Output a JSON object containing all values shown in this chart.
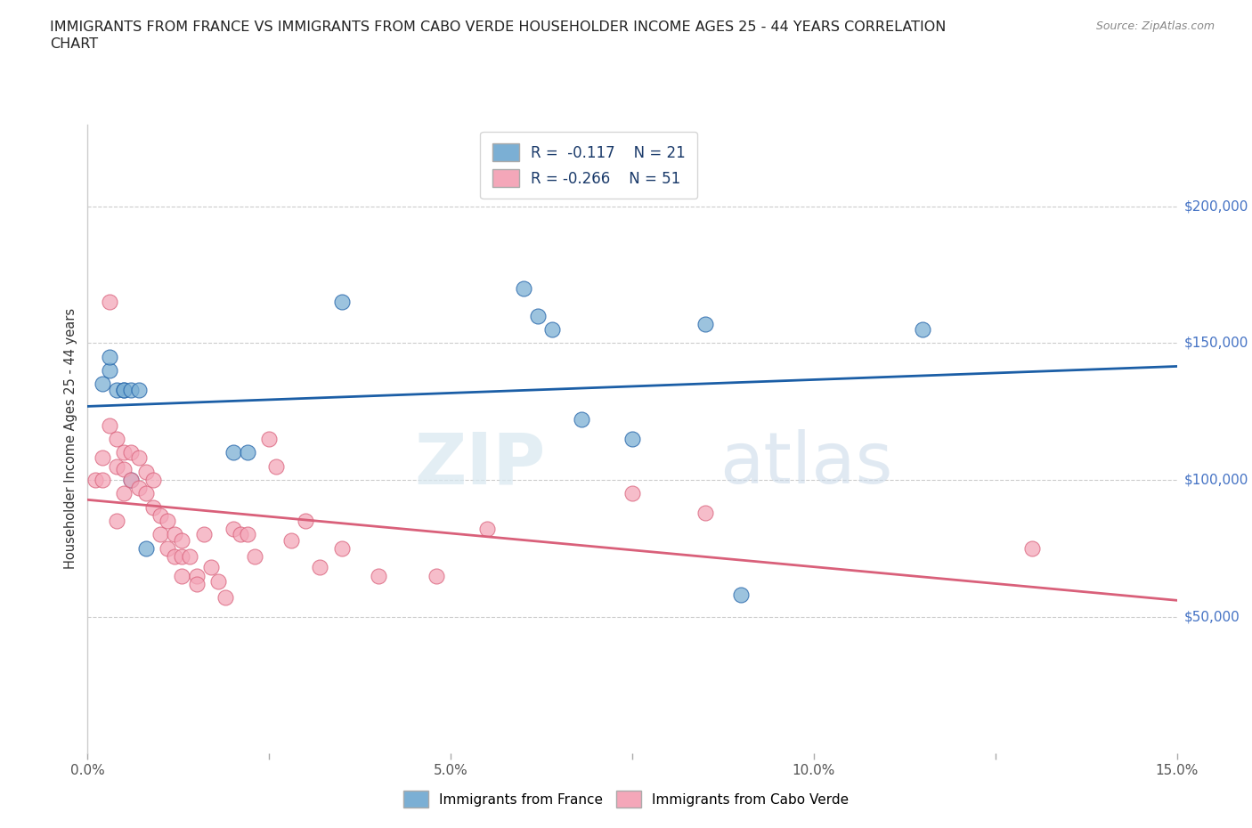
{
  "title_line1": "IMMIGRANTS FROM FRANCE VS IMMIGRANTS FROM CABO VERDE HOUSEHOLDER INCOME AGES 25 - 44 YEARS CORRELATION",
  "title_line2": "CHART",
  "source": "Source: ZipAtlas.com",
  "ylabel": "Householder Income Ages 25 - 44 years",
  "xlim": [
    0.0,
    0.15
  ],
  "ylim": [
    0,
    230000
  ],
  "xticks": [
    0.0,
    0.025,
    0.05,
    0.075,
    0.1,
    0.125,
    0.15
  ],
  "xticklabels": [
    "0.0%",
    "",
    "5.0%",
    "",
    "10.0%",
    "",
    "15.0%"
  ],
  "ytick_right_labels": [
    "$50,000",
    "$100,000",
    "$150,000",
    "$200,000"
  ],
  "ytick_right_values": [
    50000,
    100000,
    150000,
    200000
  ],
  "france_color": "#7BAFD4",
  "cabo_verde_color": "#F4A7B9",
  "france_line_color": "#1B5EA6",
  "cabo_verde_line_color": "#D9607A",
  "legend_france_r": "-0.117",
  "legend_france_n": "21",
  "legend_cabo_r": "-0.266",
  "legend_cabo_n": "51",
  "watermark_zip": "ZIP",
  "watermark_atlas": "atlas",
  "france_x": [
    0.002,
    0.003,
    0.003,
    0.004,
    0.005,
    0.005,
    0.006,
    0.006,
    0.007,
    0.008,
    0.02,
    0.022,
    0.035,
    0.06,
    0.062,
    0.064,
    0.068,
    0.075,
    0.085,
    0.09,
    0.115
  ],
  "france_y": [
    135000,
    140000,
    145000,
    133000,
    133000,
    133000,
    133000,
    100000,
    133000,
    75000,
    110000,
    110000,
    165000,
    170000,
    160000,
    155000,
    122000,
    115000,
    157000,
    58000,
    155000
  ],
  "cabo_verde_x": [
    0.001,
    0.002,
    0.002,
    0.003,
    0.003,
    0.004,
    0.004,
    0.004,
    0.005,
    0.005,
    0.005,
    0.006,
    0.006,
    0.007,
    0.007,
    0.008,
    0.008,
    0.009,
    0.009,
    0.01,
    0.01,
    0.011,
    0.011,
    0.012,
    0.012,
    0.013,
    0.013,
    0.013,
    0.014,
    0.015,
    0.015,
    0.016,
    0.017,
    0.018,
    0.019,
    0.02,
    0.021,
    0.022,
    0.023,
    0.025,
    0.026,
    0.028,
    0.03,
    0.032,
    0.035,
    0.04,
    0.048,
    0.055,
    0.075,
    0.085,
    0.13
  ],
  "cabo_verde_y": [
    100000,
    108000,
    100000,
    165000,
    120000,
    115000,
    105000,
    85000,
    110000,
    104000,
    95000,
    110000,
    100000,
    108000,
    97000,
    103000,
    95000,
    100000,
    90000,
    87000,
    80000,
    85000,
    75000,
    80000,
    72000,
    78000,
    72000,
    65000,
    72000,
    65000,
    62000,
    80000,
    68000,
    63000,
    57000,
    82000,
    80000,
    80000,
    72000,
    115000,
    105000,
    78000,
    85000,
    68000,
    75000,
    65000,
    65000,
    82000,
    95000,
    88000,
    75000
  ]
}
